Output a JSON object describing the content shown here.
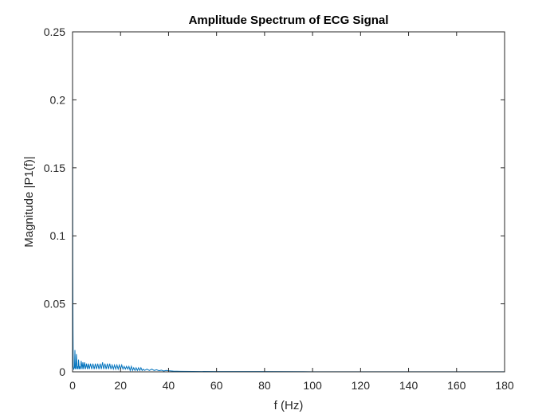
{
  "chart_data": {
    "type": "line",
    "title": "Amplitude Spectrum of ECG Signal",
    "xlabel": "f (Hz)",
    "ylabel": "Magnitude |P1(f)|",
    "xlim": [
      0,
      180
    ],
    "ylim": [
      0,
      0.25
    ],
    "xticks": [
      0,
      20,
      40,
      60,
      80,
      100,
      120,
      140,
      160,
      180
    ],
    "yticks": [
      0,
      0.05,
      0.1,
      0.15,
      0.2,
      0.25
    ],
    "ytick_labels": [
      "0",
      "0.05",
      "0.1",
      "0.15",
      "0.2",
      "0.25"
    ],
    "grid": false,
    "box": true,
    "series": [
      {
        "color": "#0072BD",
        "x": [
          0,
          0.1,
          0.2,
          0.3,
          0.5,
          0.8,
          1.0,
          1.1,
          1.2,
          1.4,
          1.6,
          1.9,
          2.1,
          2.3,
          2.5,
          2.8,
          3.0,
          3.3,
          3.6,
          4.0,
          4.3,
          4.6,
          5.0,
          5.4,
          5.8,
          6.2,
          6.6,
          7.0,
          7.5,
          8.0,
          8.5,
          9.0,
          9.5,
          10.0,
          10.5,
          11.0,
          11.5,
          12.0,
          12.5,
          13.0,
          13.5,
          14.0,
          14.5,
          15.0,
          15.5,
          16.0,
          16.5,
          17.0,
          17.5,
          18.0,
          18.5,
          19.0,
          19.5,
          20.0,
          20.5,
          21.0,
          21.5,
          22.0,
          22.5,
          23.0,
          23.5,
          24.0,
          24.5,
          25.0,
          25.5,
          26.0,
          26.5,
          27.0,
          27.5,
          28.0,
          28.5,
          29.0,
          29.5,
          30.0,
          31.0,
          32.0,
          33.0,
          34.0,
          35.0,
          36.0,
          37.0,
          38.0,
          39.0,
          40.0,
          42.0,
          45.0,
          50.0,
          60.0,
          80.0,
          100.0,
          120.0,
          140.0,
          160.0,
          180.0
        ],
        "y": [
          0.222,
          0.08,
          0.03,
          0.004,
          0.002,
          0.003,
          0.016,
          0.004,
          0.002,
          0.003,
          0.013,
          0.002,
          0.004,
          0.002,
          0.009,
          0.002,
          0.004,
          0.002,
          0.008,
          0.002,
          0.007,
          0.002,
          0.007,
          0.002,
          0.006,
          0.002,
          0.006,
          0.002,
          0.006,
          0.002,
          0.006,
          0.002,
          0.006,
          0.002,
          0.006,
          0.002,
          0.006,
          0.002,
          0.007,
          0.002,
          0.006,
          0.002,
          0.006,
          0.002,
          0.006,
          0.002,
          0.005,
          0.002,
          0.005,
          0.002,
          0.005,
          0.002,
          0.005,
          0.002,
          0.005,
          0.002,
          0.004,
          0.002,
          0.004,
          0.002,
          0.004,
          0.001,
          0.004,
          0.001,
          0.003,
          0.001,
          0.003,
          0.001,
          0.003,
          0.001,
          0.003,
          0.001,
          0.002,
          0.001,
          0.002,
          0.001,
          0.002,
          0.001,
          0.0015,
          0.0008,
          0.0012,
          0.0006,
          0.001,
          0.0008,
          0.0005,
          0.0004,
          0.0003,
          0.0002,
          0.0002,
          0.0001,
          0.0001,
          0.0001,
          0.0001,
          0.0001
        ]
      }
    ]
  }
}
